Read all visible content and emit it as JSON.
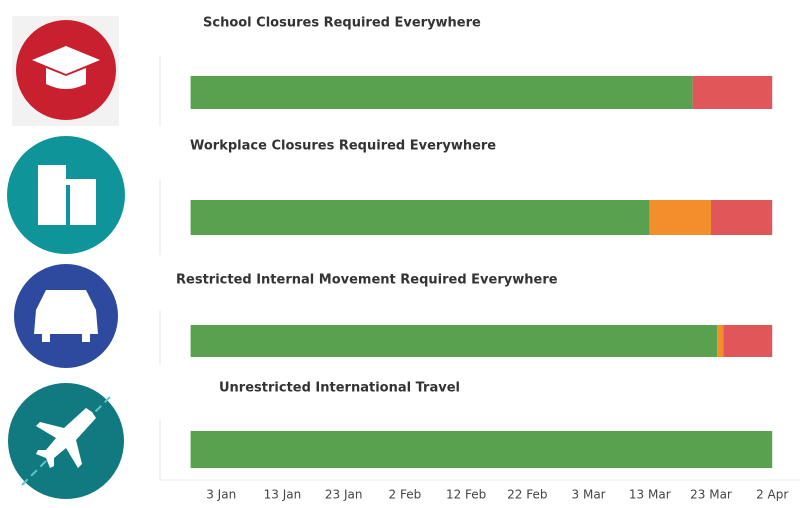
{
  "chart_data": {
    "type": "timeline",
    "xlim": [
      -7,
      96
    ],
    "xticks": [
      {
        "value": 3,
        "label": "3 Jan"
      },
      {
        "value": 13,
        "label": "13 Jan"
      },
      {
        "value": 23,
        "label": "23 Jan"
      },
      {
        "value": 33,
        "label": "2 Feb"
      },
      {
        "value": 43,
        "label": "12 Feb"
      },
      {
        "value": 53,
        "label": "22 Feb"
      },
      {
        "value": 63,
        "label": "3 Mar"
      },
      {
        "value": 73,
        "label": "13 Mar"
      },
      {
        "value": 83,
        "label": "23 Mar"
      },
      {
        "value": 93,
        "label": "2 Apr"
      }
    ],
    "panels": [
      {
        "title": "School Closures Required Everywhere",
        "start": -2,
        "segments": [
          {
            "color": "#59a14f",
            "value": 82
          },
          {
            "color": "#e15759",
            "value": 13
          }
        ]
      },
      {
        "title": "Workplace Closures Required Everywhere",
        "start": -2,
        "segments": [
          {
            "color": "#59a14f",
            "value": 75
          },
          {
            "color": "#f28e2b",
            "value": 10
          },
          {
            "color": "#e15759",
            "value": 10
          }
        ]
      },
      {
        "title": "Restricted Internal Movement Required Everywhere",
        "start": -2,
        "segments": [
          {
            "color": "#59a14f",
            "value": 86
          },
          {
            "color": "#f28e2b",
            "value": 1
          },
          {
            "color": "#e15759",
            "value": 8
          }
        ]
      },
      {
        "title": "Unrestricted International Travel",
        "start": -2,
        "segments": [
          {
            "color": "#59a14f",
            "value": 95
          }
        ]
      }
    ]
  }
}
